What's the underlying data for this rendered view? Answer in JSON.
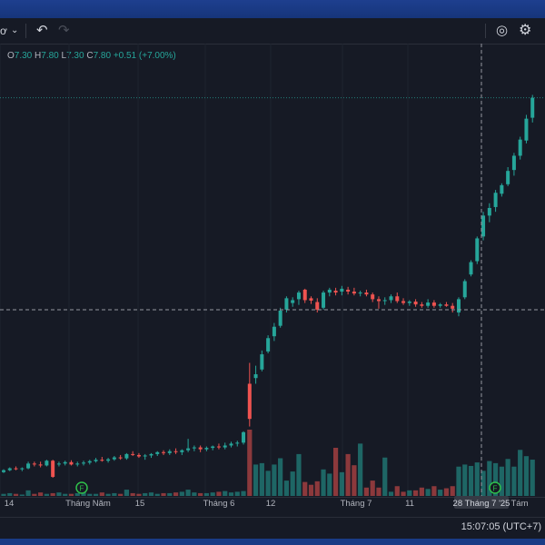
{
  "toolbar": {
    "symbol_fragment": "ơ",
    "chevron": "⌄",
    "undo": "↶",
    "redo": "↷",
    "screenshot": "◎",
    "settings": "⚙"
  },
  "ohlc": {
    "o_label": "O",
    "o_value": "7.30",
    "h_label": "H",
    "h_value": "7.80",
    "l_label": "L",
    "l_value": "7.30",
    "c_label": "C",
    "c_value": "7.80",
    "change": "+0.51 (+7.00%)"
  },
  "clock": "15:07:05 (UTC+7)",
  "colors": {
    "up": "#26a69a",
    "down": "#ef5350",
    "background": "#161a25",
    "grid": "#1f2430"
  },
  "chart_data": {
    "type": "candlestick",
    "x_tick_labels": [
      "14",
      "Tháng Năm",
      "15",
      "Tháng 6",
      "12",
      "Tháng 7",
      "11",
      "28 Tháng 7 '25",
      "Tám"
    ],
    "crosshair_date": "28 Tháng 7 '25",
    "event_markers": [
      "F",
      "F"
    ],
    "ohlc": [
      [
        2.74,
        2.8,
        2.72,
        2.78
      ],
      [
        2.78,
        2.84,
        2.76,
        2.82
      ],
      [
        2.82,
        2.86,
        2.78,
        2.8
      ],
      [
        2.8,
        2.84,
        2.76,
        2.82
      ],
      [
        2.82,
        2.96,
        2.8,
        2.92
      ],
      [
        2.92,
        2.96,
        2.86,
        2.9
      ],
      [
        2.9,
        2.96,
        2.84,
        2.88
      ],
      [
        2.88,
        3.0,
        2.86,
        2.98
      ],
      [
        2.98,
        3.0,
        2.62,
        2.64
      ],
      [
        2.9,
        2.96,
        2.86,
        2.92
      ],
      [
        2.92,
        2.98,
        2.88,
        2.95
      ],
      [
        2.95,
        2.99,
        2.88,
        2.9
      ],
      [
        2.9,
        2.96,
        2.86,
        2.92
      ],
      [
        2.92,
        2.98,
        2.88,
        2.94
      ],
      [
        2.94,
        3.0,
        2.9,
        2.97
      ],
      [
        2.97,
        3.04,
        2.94,
        3.0
      ],
      [
        3.0,
        3.06,
        2.96,
        2.98
      ],
      [
        2.98,
        3.04,
        2.94,
        3.01
      ],
      [
        3.01,
        3.08,
        2.98,
        3.05
      ],
      [
        3.05,
        3.1,
        3.0,
        3.03
      ],
      [
        3.03,
        3.14,
        3.0,
        3.12
      ],
      [
        3.12,
        3.18,
        3.08,
        3.1
      ],
      [
        3.1,
        3.14,
        3.04,
        3.07
      ],
      [
        3.07,
        3.12,
        3.0,
        3.09
      ],
      [
        3.09,
        3.14,
        3.04,
        3.12
      ],
      [
        3.12,
        3.18,
        3.08,
        3.16
      ],
      [
        3.16,
        3.2,
        3.1,
        3.14
      ],
      [
        3.14,
        3.22,
        3.1,
        3.18
      ],
      [
        3.18,
        3.24,
        3.12,
        3.16
      ],
      [
        3.16,
        3.22,
        3.1,
        3.2
      ],
      [
        3.2,
        3.44,
        3.16,
        3.24
      ],
      [
        3.24,
        3.3,
        3.18,
        3.26
      ],
      [
        3.26,
        3.3,
        3.16,
        3.22
      ],
      [
        3.22,
        3.28,
        3.18,
        3.25
      ],
      [
        3.25,
        3.3,
        3.2,
        3.28
      ],
      [
        3.28,
        3.34,
        3.22,
        3.26
      ],
      [
        3.26,
        3.36,
        3.22,
        3.3
      ],
      [
        3.3,
        3.38,
        3.26,
        3.34
      ],
      [
        3.34,
        3.4,
        3.28,
        3.36
      ],
      [
        3.36,
        3.6,
        3.32,
        3.58
      ],
      [
        4.6,
        5.04,
        3.7,
        3.86
      ],
      [
        4.72,
        4.98,
        4.6,
        4.8
      ],
      [
        4.9,
        5.3,
        4.86,
        5.22
      ],
      [
        5.28,
        5.62,
        5.24,
        5.56
      ],
      [
        5.6,
        5.88,
        5.5,
        5.8
      ],
      [
        5.82,
        6.2,
        5.78,
        6.14
      ],
      [
        6.16,
        6.44,
        6.1,
        6.4
      ],
      [
        6.3,
        6.42,
        6.22,
        6.36
      ],
      [
        6.38,
        6.56,
        6.26,
        6.52
      ],
      [
        6.58,
        6.6,
        6.3,
        6.36
      ],
      [
        6.4,
        6.44,
        6.28,
        6.35
      ],
      [
        6.32,
        6.4,
        6.1,
        6.16
      ],
      [
        6.2,
        6.56,
        6.16,
        6.52
      ],
      [
        6.52,
        6.62,
        6.44,
        6.58
      ],
      [
        6.56,
        6.62,
        6.46,
        6.52
      ],
      [
        6.54,
        6.66,
        6.46,
        6.6
      ],
      [
        6.58,
        6.64,
        6.48,
        6.54
      ],
      [
        6.54,
        6.62,
        6.46,
        6.5
      ],
      [
        6.5,
        6.56,
        6.44,
        6.52
      ],
      [
        6.52,
        6.58,
        6.44,
        6.48
      ],
      [
        6.48,
        6.52,
        6.32,
        6.38
      ],
      [
        6.38,
        6.44,
        6.18,
        6.34
      ],
      [
        6.34,
        6.42,
        6.26,
        6.36
      ],
      [
        6.36,
        6.48,
        6.3,
        6.44
      ],
      [
        6.44,
        6.52,
        6.3,
        6.34
      ],
      [
        6.34,
        6.4,
        6.26,
        6.3
      ],
      [
        6.3,
        6.36,
        6.24,
        6.33
      ],
      [
        6.33,
        6.38,
        6.22,
        6.27
      ],
      [
        6.27,
        6.32,
        6.2,
        6.24
      ],
      [
        6.24,
        6.38,
        6.2,
        6.31
      ],
      [
        6.31,
        6.36,
        6.2,
        6.24
      ],
      [
        6.24,
        6.3,
        6.2,
        6.27
      ],
      [
        6.27,
        6.32,
        6.22,
        6.24
      ],
      [
        6.24,
        6.3,
        6.1,
        6.18
      ],
      [
        6.1,
        6.42,
        6.02,
        6.38
      ],
      [
        6.42,
        6.8,
        6.38,
        6.76
      ],
      [
        6.9,
        7.2,
        6.86,
        7.16
      ],
      [
        7.18,
        7.7,
        7.12,
        7.66
      ],
      [
        7.7,
        8.22,
        7.62,
        8.14
      ],
      [
        8.14,
        8.4,
        8.0,
        8.3
      ],
      [
        8.32,
        8.68,
        8.22,
        8.62
      ],
      [
        8.6,
        8.82,
        8.54,
        8.78
      ],
      [
        8.8,
        9.16,
        8.76,
        9.08
      ],
      [
        9.1,
        9.46,
        8.98,
        9.4
      ],
      [
        9.4,
        9.8,
        9.32,
        9.74
      ],
      [
        9.72,
        10.26,
        9.66,
        10.18
      ],
      [
        10.2,
        10.68,
        10.1,
        10.62
      ]
    ],
    "volume": [
      0.3,
      0.4,
      0.3,
      0.2,
      0.8,
      0.3,
      0.5,
      0.3,
      0.4,
      0.5,
      0.3,
      0.3,
      0.4,
      0.6,
      0.3,
      0.3,
      0.5,
      0.3,
      0.4,
      0.3,
      0.9,
      0.4,
      0.3,
      0.4,
      0.5,
      0.3,
      0.4,
      0.4,
      0.5,
      0.6,
      0.9,
      0.5,
      0.4,
      0.4,
      0.5,
      0.6,
      0.7,
      0.5,
      0.6,
      0.7,
      9.5,
      4.5,
      4.7,
      3.6,
      4.5,
      5.4,
      2.2,
      3.5,
      6.0,
      2.0,
      1.6,
      2.1,
      3.8,
      3.2,
      6.9,
      3.4,
      6.0,
      4.4,
      7.5,
      1.2,
      2.2,
      1.2,
      5.5,
      0.6,
      1.4,
      0.6,
      0.8,
      0.8,
      1.2,
      1.0,
      1.4,
      0.9,
      1.1,
      1.4,
      4.2,
      4.5,
      4.3,
      4.8,
      3.6,
      5.0,
      4.7,
      4.2,
      5.3,
      4.2,
      6.6,
      5.7,
      5.2
    ],
    "y_range": [
      2.2,
      10.9
    ],
    "grid": true
  }
}
